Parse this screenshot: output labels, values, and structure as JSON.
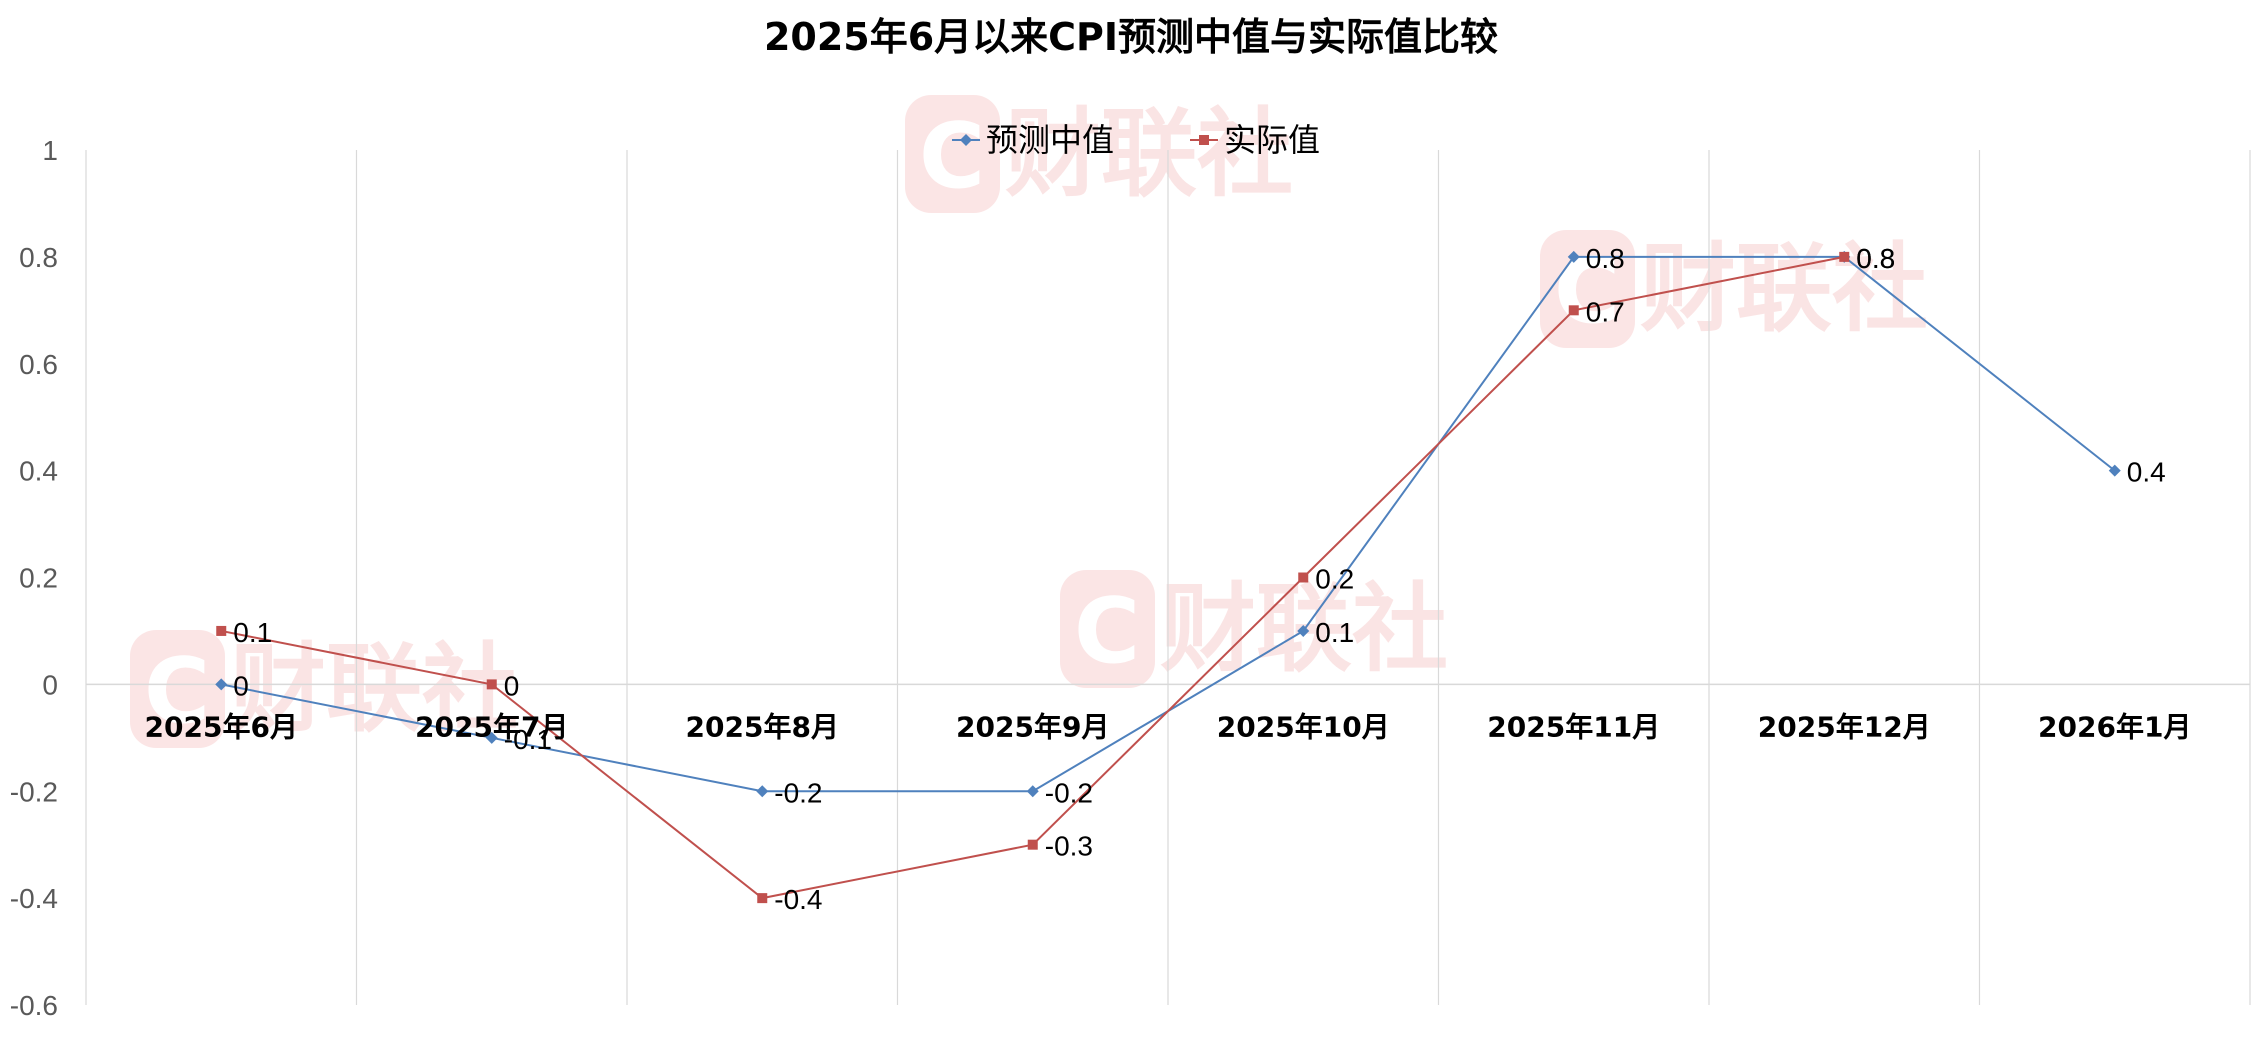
{
  "watermark": {
    "text": "财联社",
    "logo_letter": "C",
    "color": "#f4b4b4"
  },
  "chart_data": {
    "type": "line",
    "title": "2025年6月以来CPI预测中值与实际值比较",
    "categories": [
      "2025年6月",
      "2025年7月",
      "2025年8月",
      "2025年9月",
      "2025年10月",
      "2025年11月",
      "2025年12月",
      "2026年1月"
    ],
    "series": [
      {
        "name": "预测中值",
        "color": "#4f81bd",
        "marker": "diamond",
        "values": [
          0,
          -0.1,
          -0.2,
          -0.2,
          0.1,
          0.8,
          0.8,
          0.4
        ],
        "labels": [
          "0",
          "-0.1",
          "-0.2",
          "-0.2",
          "0.1",
          "0.8",
          "0.8",
          "0.4"
        ]
      },
      {
        "name": "实际值",
        "color": "#c0504d",
        "marker": "square",
        "values": [
          0.1,
          0,
          -0.4,
          -0.3,
          0.2,
          0.7,
          0.8,
          null
        ],
        "labels": [
          "0.1",
          "0",
          "-0.4",
          "-0.3",
          "0.2",
          "0.7",
          "0.8",
          ""
        ]
      }
    ],
    "ylim": [
      -0.6,
      1
    ],
    "yticks": [
      "1",
      "0.8",
      "0.6",
      "0.4",
      "0.2",
      "0",
      "-0.2",
      "-0.4",
      "-0.6"
    ],
    "ytick_values": [
      1,
      0.8,
      0.6,
      0.4,
      0.2,
      0,
      -0.2,
      -0.4,
      -0.6
    ],
    "grid": true,
    "legend": "top-center",
    "xlabel": "",
    "ylabel": ""
  }
}
